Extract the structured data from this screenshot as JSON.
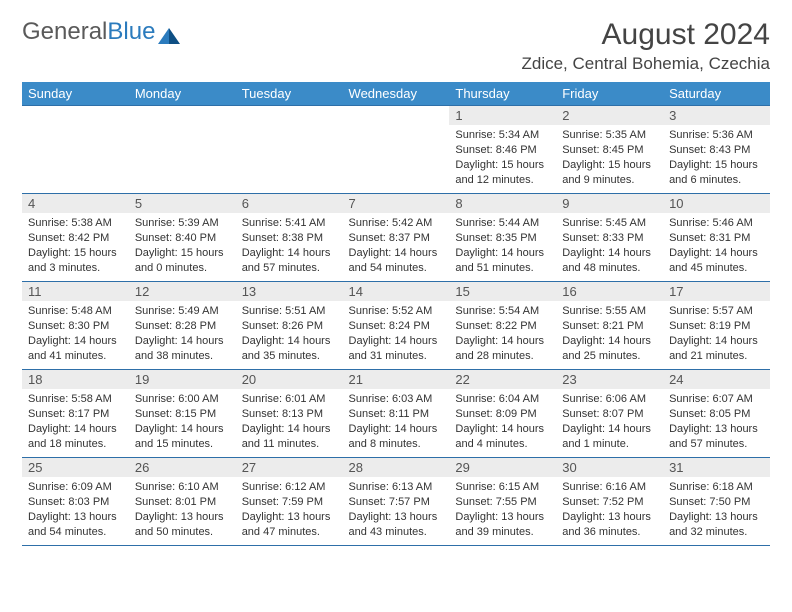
{
  "brand": {
    "part1": "General",
    "part2": "Blue"
  },
  "title": "August 2024",
  "location": "Zdice, Central Bohemia, Czechia",
  "colors": {
    "header_bg": "#3b8bc8",
    "header_text": "#ffffff",
    "daynum_bg": "#ececec",
    "border": "#2e6fa8",
    "brand_gray": "#5a5a5a",
    "brand_blue": "#2b7bbd"
  },
  "weekdays": [
    "Sunday",
    "Monday",
    "Tuesday",
    "Wednesday",
    "Thursday",
    "Friday",
    "Saturday"
  ],
  "weeks": [
    [
      null,
      null,
      null,
      null,
      {
        "n": "1",
        "sr": "5:34 AM",
        "ss": "8:46 PM",
        "dl": "15 hours and 12 minutes."
      },
      {
        "n": "2",
        "sr": "5:35 AM",
        "ss": "8:45 PM",
        "dl": "15 hours and 9 minutes."
      },
      {
        "n": "3",
        "sr": "5:36 AM",
        "ss": "8:43 PM",
        "dl": "15 hours and 6 minutes."
      }
    ],
    [
      {
        "n": "4",
        "sr": "5:38 AM",
        "ss": "8:42 PM",
        "dl": "15 hours and 3 minutes."
      },
      {
        "n": "5",
        "sr": "5:39 AM",
        "ss": "8:40 PM",
        "dl": "15 hours and 0 minutes."
      },
      {
        "n": "6",
        "sr": "5:41 AM",
        "ss": "8:38 PM",
        "dl": "14 hours and 57 minutes."
      },
      {
        "n": "7",
        "sr": "5:42 AM",
        "ss": "8:37 PM",
        "dl": "14 hours and 54 minutes."
      },
      {
        "n": "8",
        "sr": "5:44 AM",
        "ss": "8:35 PM",
        "dl": "14 hours and 51 minutes."
      },
      {
        "n": "9",
        "sr": "5:45 AM",
        "ss": "8:33 PM",
        "dl": "14 hours and 48 minutes."
      },
      {
        "n": "10",
        "sr": "5:46 AM",
        "ss": "8:31 PM",
        "dl": "14 hours and 45 minutes."
      }
    ],
    [
      {
        "n": "11",
        "sr": "5:48 AM",
        "ss": "8:30 PM",
        "dl": "14 hours and 41 minutes."
      },
      {
        "n": "12",
        "sr": "5:49 AM",
        "ss": "8:28 PM",
        "dl": "14 hours and 38 minutes."
      },
      {
        "n": "13",
        "sr": "5:51 AM",
        "ss": "8:26 PM",
        "dl": "14 hours and 35 minutes."
      },
      {
        "n": "14",
        "sr": "5:52 AM",
        "ss": "8:24 PM",
        "dl": "14 hours and 31 minutes."
      },
      {
        "n": "15",
        "sr": "5:54 AM",
        "ss": "8:22 PM",
        "dl": "14 hours and 28 minutes."
      },
      {
        "n": "16",
        "sr": "5:55 AM",
        "ss": "8:21 PM",
        "dl": "14 hours and 25 minutes."
      },
      {
        "n": "17",
        "sr": "5:57 AM",
        "ss": "8:19 PM",
        "dl": "14 hours and 21 minutes."
      }
    ],
    [
      {
        "n": "18",
        "sr": "5:58 AM",
        "ss": "8:17 PM",
        "dl": "14 hours and 18 minutes."
      },
      {
        "n": "19",
        "sr": "6:00 AM",
        "ss": "8:15 PM",
        "dl": "14 hours and 15 minutes."
      },
      {
        "n": "20",
        "sr": "6:01 AM",
        "ss": "8:13 PM",
        "dl": "14 hours and 11 minutes."
      },
      {
        "n": "21",
        "sr": "6:03 AM",
        "ss": "8:11 PM",
        "dl": "14 hours and 8 minutes."
      },
      {
        "n": "22",
        "sr": "6:04 AM",
        "ss": "8:09 PM",
        "dl": "14 hours and 4 minutes."
      },
      {
        "n": "23",
        "sr": "6:06 AM",
        "ss": "8:07 PM",
        "dl": "14 hours and 1 minute."
      },
      {
        "n": "24",
        "sr": "6:07 AM",
        "ss": "8:05 PM",
        "dl": "13 hours and 57 minutes."
      }
    ],
    [
      {
        "n": "25",
        "sr": "6:09 AM",
        "ss": "8:03 PM",
        "dl": "13 hours and 54 minutes."
      },
      {
        "n": "26",
        "sr": "6:10 AM",
        "ss": "8:01 PM",
        "dl": "13 hours and 50 minutes."
      },
      {
        "n": "27",
        "sr": "6:12 AM",
        "ss": "7:59 PM",
        "dl": "13 hours and 47 minutes."
      },
      {
        "n": "28",
        "sr": "6:13 AM",
        "ss": "7:57 PM",
        "dl": "13 hours and 43 minutes."
      },
      {
        "n": "29",
        "sr": "6:15 AM",
        "ss": "7:55 PM",
        "dl": "13 hours and 39 minutes."
      },
      {
        "n": "30",
        "sr": "6:16 AM",
        "ss": "7:52 PM",
        "dl": "13 hours and 36 minutes."
      },
      {
        "n": "31",
        "sr": "6:18 AM",
        "ss": "7:50 PM",
        "dl": "13 hours and 32 minutes."
      }
    ]
  ]
}
